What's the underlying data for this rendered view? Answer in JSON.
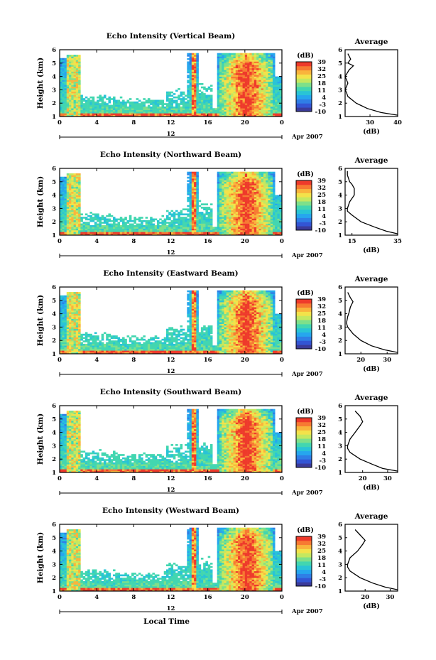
{
  "colors": {
    "colormap": [
      "#3b3b9a",
      "#3355d4",
      "#2f7ee6",
      "#26a6ee",
      "#29c4d6",
      "#42d6b0",
      "#7ee08a",
      "#c4e860",
      "#f3e24a",
      "#f9b43c",
      "#f77a32",
      "#ee3a2b"
    ],
    "frame": "#000000"
  },
  "shared": {
    "x_ticks": [
      "0",
      "4",
      "8",
      "12",
      "16",
      "20",
      "0"
    ],
    "y_ticks": [
      "1",
      "2",
      "3",
      "4",
      "5",
      "6"
    ],
    "ylabel": "Height (km)",
    "date_tick": "12",
    "month_label": "Apr 2007",
    "xlabel": "Local Time",
    "colorbar_unit": "(dB)",
    "colorbar_ticks": [
      "-10",
      "-3",
      "4",
      "11",
      "18",
      "25",
      "32",
      "39"
    ],
    "avg_title": "Average",
    "avg_xlabel": "(dB)"
  },
  "chart_data": [
    {
      "type": "heatmap",
      "title": "Echo Intensity (Vertical Beam)",
      "ylabel": "Height (km)",
      "ylim": [
        1,
        6
      ],
      "xlim": [
        0,
        24
      ],
      "colorbar_range": [
        -10,
        39
      ],
      "average_profile": {
        "title": "Average",
        "xlabel": "(dB)",
        "xticks": [
          "30",
          "40"
        ],
        "xlim": [
          21,
          40
        ],
        "height": [
          1.1,
          1.3,
          1.6,
          2.0,
          2.5,
          2.8,
          3.0,
          3.5,
          4.0,
          4.5,
          4.8,
          5.0,
          5.3,
          5.7
        ],
        "value": [
          40,
          34,
          29,
          25,
          22,
          21.5,
          21,
          22,
          21,
          22.5,
          24,
          22,
          23,
          22
        ]
      }
    },
    {
      "type": "heatmap",
      "title": "Echo Intensity (Northward Beam)",
      "ylabel": "Height (km)",
      "ylim": [
        1,
        6
      ],
      "xlim": [
        0,
        24
      ],
      "colorbar_range": [
        -10,
        39
      ],
      "average_profile": {
        "title": "Average",
        "xlabel": "(dB)",
        "xticks": [
          "15",
          "35"
        ],
        "xlim": [
          12,
          35
        ],
        "height": [
          1.1,
          1.3,
          1.6,
          2.0,
          2.5,
          2.8,
          3.0,
          3.5,
          4.0,
          4.5,
          4.8,
          5.0,
          5.5,
          5.8
        ],
        "value": [
          35,
          30,
          25,
          19,
          15,
          13,
          13,
          14,
          16,
          16,
          15,
          14,
          13,
          13
        ]
      }
    },
    {
      "type": "heatmap",
      "title": "Echo Intensity (Eastward Beam)",
      "ylabel": "Height (km)",
      "ylim": [
        1,
        6
      ],
      "xlim": [
        0,
        24
      ],
      "colorbar_range": [
        -10,
        39
      ],
      "average_profile": {
        "title": "Average",
        "xlabel": "(dB)",
        "xticks": [
          "20",
          "30"
        ],
        "xlim": [
          14,
          34
        ],
        "height": [
          1.1,
          1.3,
          1.6,
          2.0,
          2.5,
          3.0,
          3.3,
          3.8,
          4.1,
          4.5,
          4.9,
          5.2,
          5.6
        ],
        "value": [
          34,
          29,
          24,
          20,
          17,
          15,
          14.5,
          15,
          15.5,
          16,
          17,
          16,
          15
        ]
      }
    },
    {
      "type": "heatmap",
      "title": "Echo Intensity (Southward Beam)",
      "ylabel": "Height (km)",
      "ylim": [
        1,
        6
      ],
      "xlim": [
        0,
        24
      ],
      "colorbar_range": [
        -10,
        39
      ],
      "average_profile": {
        "title": "Average",
        "xlabel": "(dB)",
        "xticks": [
          "20",
          "30"
        ],
        "xlim": [
          13,
          34
        ],
        "height": [
          1.1,
          1.3,
          1.6,
          2.0,
          2.5,
          2.8,
          3.0,
          3.5,
          4.0,
          4.5,
          4.8,
          5.2,
          5.6
        ],
        "value": [
          34,
          28,
          24,
          19,
          15,
          14,
          14,
          15,
          17,
          19,
          20,
          19,
          17
        ]
      }
    },
    {
      "type": "heatmap",
      "title": "Echo Intensity (Westward Beam)",
      "ylabel": "Height (km)",
      "ylim": [
        1,
        6
      ],
      "xlim": [
        0,
        24
      ],
      "colorbar_range": [
        -10,
        39
      ],
      "average_profile": {
        "title": "Average",
        "xlabel": "(dB)",
        "xticks": [
          "20",
          "30"
        ],
        "xlim": [
          12,
          33
        ],
        "height": [
          1.1,
          1.3,
          1.6,
          2.0,
          2.5,
          2.8,
          3.0,
          3.5,
          4.0,
          4.5,
          4.8,
          5.2,
          5.6
        ],
        "value": [
          33,
          28,
          23,
          18,
          14,
          13,
          13,
          14,
          17,
          19,
          20,
          18,
          16
        ]
      }
    }
  ]
}
